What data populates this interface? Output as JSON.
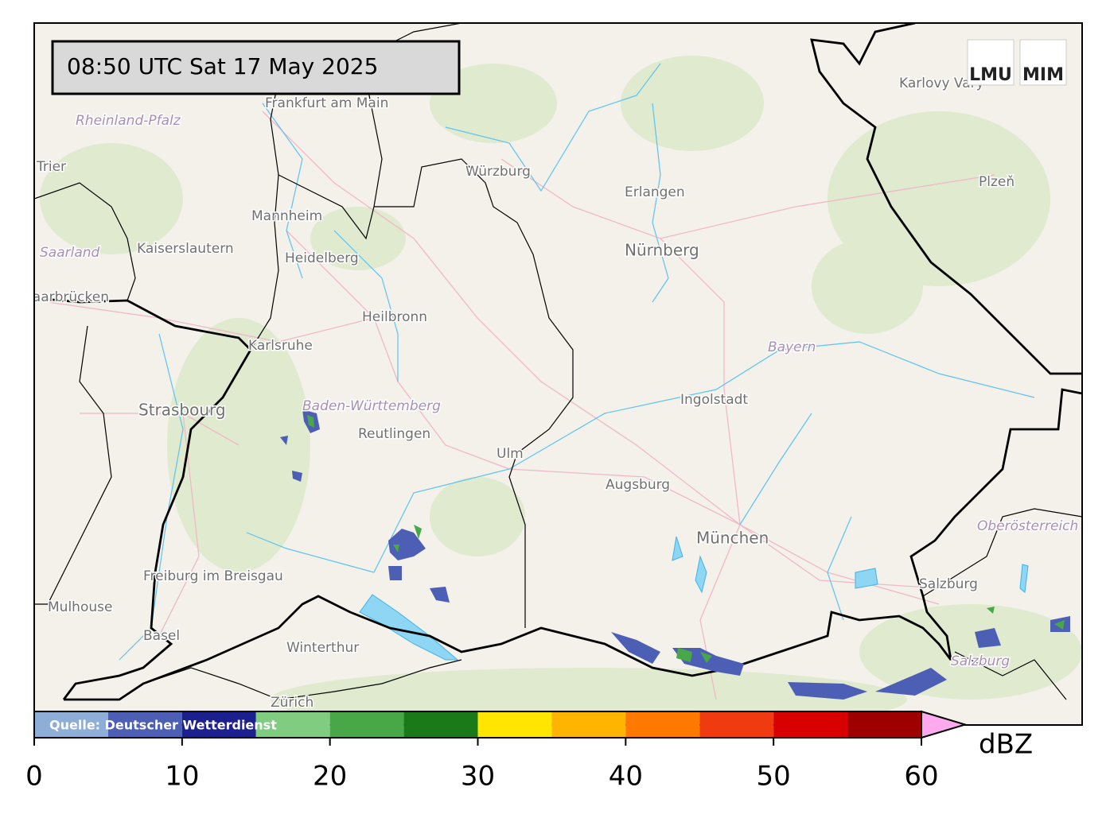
{
  "header": {
    "timestamp": "08:50 UTC  Sat 17 May 2025"
  },
  "logo": {
    "left": "LMU",
    "right": "MIM"
  },
  "source": "Quelle: Deutscher Wetterdienst",
  "places": {
    "frankfurt": "Frankfurt am Main",
    "wuerzburg": "Würzburg",
    "erlangen": "Erlangen",
    "nuernberg": "Nürnberg",
    "mannheim": "Mannheim",
    "heidelberg": "Heidelberg",
    "kaiserslautern": "Kaiserslautern",
    "heilbronn": "Heilbronn",
    "karlsruhe": "Karlsruhe",
    "strasbourg": "Strasbourg",
    "reutlingen": "Reutlingen",
    "ulm": "Ulm",
    "augsburg": "Augsburg",
    "ingolstadt": "Ingolstadt",
    "muenchen": "München",
    "freiburg": "Freiburg im Breisgau",
    "mulhouse": "Mulhouse",
    "basel": "Basel",
    "winterthur": "Winterthur",
    "zuerich": "Zürich",
    "salzburg": "Salzburg",
    "karlovy_vary": "Karlovy Vary",
    "plzen": "Plzeň",
    "trier": "Trier",
    "saarbruecken": "Saarbrücken"
  },
  "regions": {
    "rheinland_pfalz": "Rheinland-Pfalz",
    "saarland": "Saarland",
    "bayern": "Bayern",
    "baden_wuerttemberg": "Baden-Württemberg",
    "oberoesterreich": "Oberösterreich",
    "salzburg": "Salzburg"
  },
  "colorbar": {
    "bounds": [
      0,
      5,
      10,
      15,
      20,
      25,
      30,
      35,
      40,
      45,
      50,
      55,
      60
    ],
    "colors": [
      "#8eaed8",
      "#4d5fb5",
      "#1c1f8e",
      "#80cc80",
      "#48a848",
      "#1a7a1a",
      "#ffe500",
      "#ffb400",
      "#ff7800",
      "#f03a10",
      "#d80000",
      "#9e0000"
    ],
    "over_color": "#ffaaee",
    "ticks": [
      0,
      10,
      20,
      30,
      40,
      50,
      60
    ],
    "unit": "dBZ"
  }
}
